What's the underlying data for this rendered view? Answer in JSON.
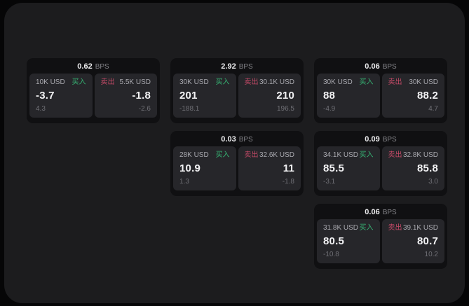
{
  "theme": {
    "panel-bg": "#1c1c1e",
    "card-bg": "#101012",
    "tile-bg": "#26262a",
    "buy-green": "#36b273",
    "sell-red": "#c44a67"
  },
  "labels": {
    "buy": "买入",
    "sell": "卖出",
    "bps": "BPS"
  },
  "cards": [
    {
      "bps": "0.62",
      "buy": {
        "amount": "10K USD",
        "value": "-3.7",
        "delta": "4.3"
      },
      "sell": {
        "amount": "5.5K USD",
        "value": "-1.8",
        "delta": "-2.6"
      }
    },
    {
      "bps": "2.92",
      "buy": {
        "amount": "30K USD",
        "value": "201",
        "delta": "-188.1"
      },
      "sell": {
        "amount": "30.1K USD",
        "value": "210",
        "delta": "196.5"
      }
    },
    {
      "bps": "0.06",
      "buy": {
        "amount": "30K USD",
        "value": "88",
        "delta": "-4.9"
      },
      "sell": {
        "amount": "30K USD",
        "value": "88.2",
        "delta": "4.7"
      }
    },
    {
      "bps": "0.03",
      "buy": {
        "amount": "28K USD",
        "value": "10.9",
        "delta": "1.3"
      },
      "sell": {
        "amount": "32.6K USD",
        "value": "11",
        "delta": "-1.8"
      }
    },
    {
      "bps": "0.09",
      "buy": {
        "amount": "34.1K USD",
        "value": "85.5",
        "delta": "-3.1"
      },
      "sell": {
        "amount": "32.8K USD",
        "value": "85.8",
        "delta": "3.0"
      }
    },
    {
      "bps": "0.06",
      "buy": {
        "amount": "31.8K USD",
        "value": "80.5",
        "delta": "-10.8"
      },
      "sell": {
        "amount": "39.1K USD",
        "value": "80.7",
        "delta": "10.2"
      }
    }
  ]
}
